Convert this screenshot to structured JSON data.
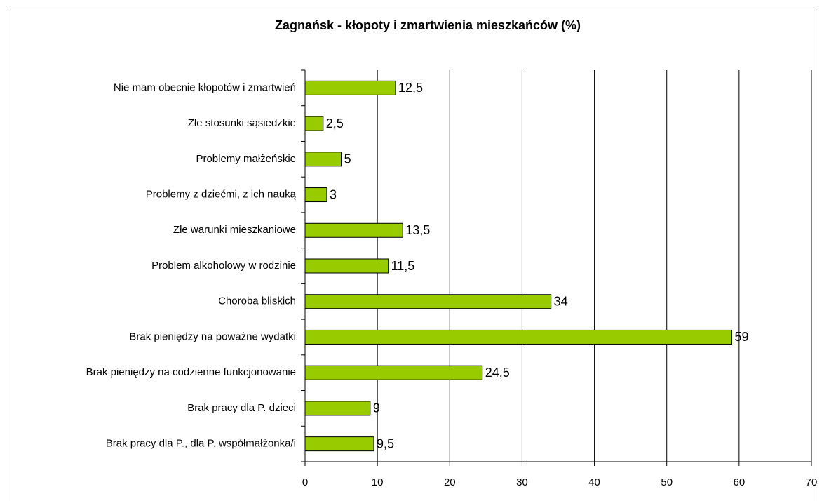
{
  "chart_data": {
    "type": "bar",
    "orientation": "horizontal",
    "title": "Zagnańsk - kłopoty i zmartwienia mieszkańców (%)",
    "categories": [
      "Nie mam obecnie kłopotów i zmartwień",
      "Złe stosunki sąsiedzkie",
      "Problemy małżeńskie",
      "Problemy z dziećmi, z ich nauką",
      "Złe warunki mieszkaniowe",
      "Problem alkoholowy w rodzinie",
      "Choroba bliskich",
      "Brak pieniędzy na poważne wydatki",
      "Brak pieniędzy na codzienne funkcjonowanie",
      "Brak pracy dla P. dzieci",
      "Brak pracy dla P., dla P. współmałżonka/i"
    ],
    "values": [
      12.5,
      2.5,
      5,
      3,
      13.5,
      11.5,
      34,
      59,
      24.5,
      9,
      9.5
    ],
    "value_labels": [
      "12,5",
      "2,5",
      "5",
      "3",
      "13,5",
      "11,5",
      "34",
      "59",
      "24,5",
      "9",
      "9,5"
    ],
    "color": "#99cc00",
    "xlim": [
      0,
      70
    ],
    "xticks": [
      0,
      10,
      20,
      30,
      40,
      50,
      60,
      70
    ],
    "grid": true
  }
}
